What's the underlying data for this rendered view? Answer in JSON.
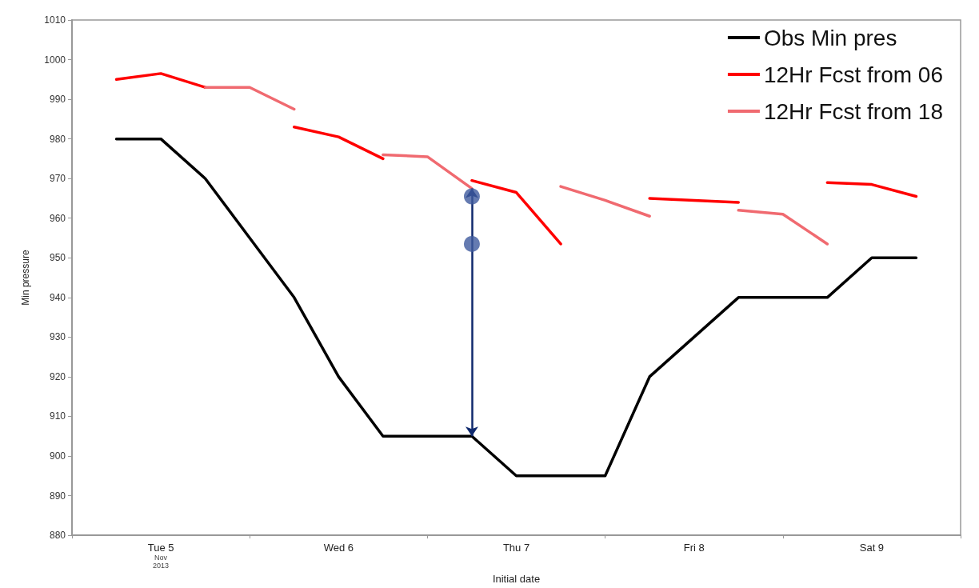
{
  "chart_data": {
    "type": "line",
    "xlabel": "Initial date",
    "ylabel": "Min pressure",
    "x": [
      "2013-11-05T06:00",
      "2013-11-05T12:00",
      "2013-11-05T18:00",
      "2013-11-06T00:00",
      "2013-11-06T06:00",
      "2013-11-06T12:00",
      "2013-11-06T18:00",
      "2013-11-07T00:00",
      "2013-11-07T06:00",
      "2013-11-07T12:00",
      "2013-11-07T18:00",
      "2013-11-08T00:00",
      "2013-11-08T06:00",
      "2013-11-08T12:00",
      "2013-11-08T18:00",
      "2013-11-09T00:00",
      "2013-11-09T06:00",
      "2013-11-09T12:00",
      "2013-11-09T18:00"
    ],
    "series": [
      {
        "name": "Obs Min pres",
        "color": "#000000",
        "values": [
          980,
          980,
          970,
          955,
          940,
          920,
          905,
          905,
          905,
          895,
          895,
          895,
          920,
          930,
          940,
          940,
          940,
          950,
          950
        ]
      },
      {
        "name": "12Hr Fcst from 06",
        "color": "#ff0000",
        "values": [
          995,
          996.5,
          993,
          null,
          983,
          980.5,
          975,
          null,
          969.5,
          966.5,
          953.5,
          null,
          965,
          964.5,
          964,
          null,
          969,
          968.5,
          965.5
        ]
      },
      {
        "name": "12Hr Fcst from 18",
        "color": "#f06a70",
        "values": [
          null,
          null,
          993,
          993,
          987.5,
          null,
          976,
          975.5,
          967.5,
          null,
          968,
          964.5,
          960.5,
          null,
          962,
          961,
          953.5,
          null,
          null
        ]
      },
      {
        "type": "scatter",
        "color": "#3e5a9e",
        "x": [
          "2013-11-07T06:00",
          "2013-11-07T06:00"
        ],
        "values": [
          965.5,
          953.5
        ]
      }
    ],
    "xlim": [
      "2013-11-05T00:00",
      "2013-11-10T00:00"
    ],
    "xticks": [
      {
        "value": "2013-11-05T00:00",
        "label": null
      },
      {
        "value": "2013-11-05T12:00",
        "label": "Tue 5\nNov\n2013"
      },
      {
        "value": "2013-11-06T00:00",
        "label": null
      },
      {
        "value": "2013-11-06T12:00",
        "label": "Wed 6"
      },
      {
        "value": "2013-11-07T00:00",
        "label": null
      },
      {
        "value": "2013-11-07T12:00",
        "label": "Thu 7"
      },
      {
        "value": "2013-11-08T00:00",
        "label": null
      },
      {
        "value": "2013-11-08T12:00",
        "label": "Fri 8"
      },
      {
        "value": "2013-11-09T00:00",
        "label": null
      },
      {
        "value": "2013-11-09T12:00",
        "label": "Sat 9"
      },
      {
        "value": "2013-11-10T00:00",
        "label": null
      }
    ],
    "ylim": [
      880,
      1010
    ],
    "yticks": [
      880,
      890,
      900,
      910,
      920,
      930,
      940,
      950,
      960,
      970,
      980,
      990,
      1000,
      1010
    ],
    "grid": false,
    "legend": "top right",
    "line_style": "solid"
  }
}
